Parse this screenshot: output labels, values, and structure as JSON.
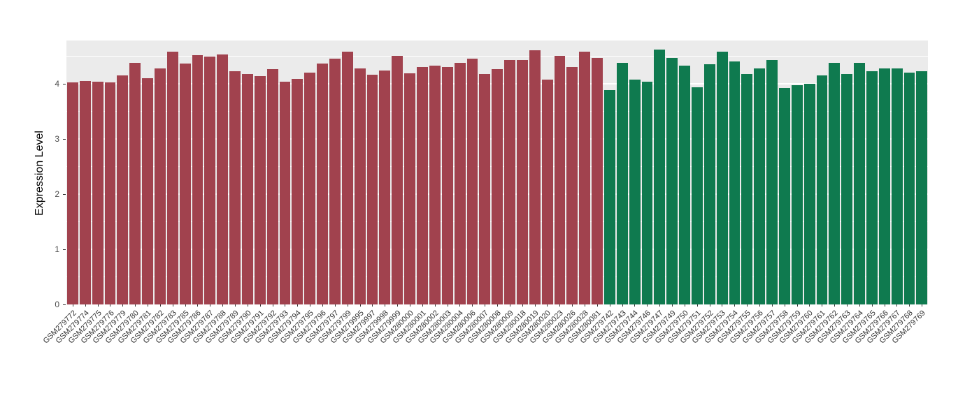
{
  "chart_data": {
    "type": "bar",
    "title": "",
    "xlabel": "",
    "ylabel": "Expression Level",
    "ylim": [
      0,
      4.78
    ],
    "yticks": [
      0,
      1,
      2,
      3,
      4
    ],
    "grid": true,
    "legend": "none",
    "panel_bg": "#EBEBEB",
    "group_colors": {
      "A": "#A1424E",
      "B": "#0F7A4F"
    },
    "bars": [
      {
        "label": "GSM279772",
        "value": 4.02,
        "group": "A"
      },
      {
        "label": "GSM279774",
        "value": 4.05,
        "group": "A"
      },
      {
        "label": "GSM279775",
        "value": 4.04,
        "group": "A"
      },
      {
        "label": "GSM279776",
        "value": 4.02,
        "group": "A"
      },
      {
        "label": "GSM279779",
        "value": 4.15,
        "group": "A"
      },
      {
        "label": "GSM279780",
        "value": 4.38,
        "group": "A"
      },
      {
        "label": "GSM279781",
        "value": 4.1,
        "group": "A"
      },
      {
        "label": "GSM279782",
        "value": 4.28,
        "group": "A"
      },
      {
        "label": "GSM279783",
        "value": 4.58,
        "group": "A"
      },
      {
        "label": "GSM279785",
        "value": 4.36,
        "group": "A"
      },
      {
        "label": "GSM279786",
        "value": 4.52,
        "group": "A"
      },
      {
        "label": "GSM279787",
        "value": 4.49,
        "group": "A"
      },
      {
        "label": "GSM279788",
        "value": 4.53,
        "group": "A"
      },
      {
        "label": "GSM279789",
        "value": 4.22,
        "group": "A"
      },
      {
        "label": "GSM279790",
        "value": 4.17,
        "group": "A"
      },
      {
        "label": "GSM279791",
        "value": 4.14,
        "group": "A"
      },
      {
        "label": "GSM279792",
        "value": 4.26,
        "group": "A"
      },
      {
        "label": "GSM279793",
        "value": 4.03,
        "group": "A"
      },
      {
        "label": "GSM279794",
        "value": 4.09,
        "group": "A"
      },
      {
        "label": "GSM279795",
        "value": 4.2,
        "group": "A"
      },
      {
        "label": "GSM279796",
        "value": 4.36,
        "group": "A"
      },
      {
        "label": "GSM279797",
        "value": 4.45,
        "group": "A"
      },
      {
        "label": "GSM279799",
        "value": 4.58,
        "group": "A"
      },
      {
        "label": "GSM279995",
        "value": 4.27,
        "group": "A"
      },
      {
        "label": "GSM279997",
        "value": 4.16,
        "group": "A"
      },
      {
        "label": "GSM279998",
        "value": 4.24,
        "group": "A"
      },
      {
        "label": "GSM279999",
        "value": 4.5,
        "group": "A"
      },
      {
        "label": "GSM280000",
        "value": 4.18,
        "group": "A"
      },
      {
        "label": "GSM280001",
        "value": 4.3,
        "group": "A"
      },
      {
        "label": "GSM280002",
        "value": 4.32,
        "group": "A"
      },
      {
        "label": "GSM280003",
        "value": 4.3,
        "group": "A"
      },
      {
        "label": "GSM280004",
        "value": 4.38,
        "group": "A"
      },
      {
        "label": "GSM280006",
        "value": 4.45,
        "group": "A"
      },
      {
        "label": "GSM280007",
        "value": 4.17,
        "group": "A"
      },
      {
        "label": "GSM280008",
        "value": 4.26,
        "group": "A"
      },
      {
        "label": "GSM280009",
        "value": 4.42,
        "group": "A"
      },
      {
        "label": "GSM280018",
        "value": 4.42,
        "group": "A"
      },
      {
        "label": "GSM280019",
        "value": 4.6,
        "group": "A"
      },
      {
        "label": "GSM280020",
        "value": 4.07,
        "group": "A"
      },
      {
        "label": "GSM280023",
        "value": 4.5,
        "group": "A"
      },
      {
        "label": "GSM280026",
        "value": 4.3,
        "group": "A"
      },
      {
        "label": "GSM280028",
        "value": 4.58,
        "group": "A"
      },
      {
        "label": "GSM280081",
        "value": 4.47,
        "group": "A"
      },
      {
        "label": "GSM279742",
        "value": 3.88,
        "group": "B"
      },
      {
        "label": "GSM279743",
        "value": 4.37,
        "group": "B"
      },
      {
        "label": "GSM279744",
        "value": 4.07,
        "group": "B"
      },
      {
        "label": "GSM279746",
        "value": 4.03,
        "group": "B"
      },
      {
        "label": "GSM279747",
        "value": 4.62,
        "group": "B"
      },
      {
        "label": "GSM279749",
        "value": 4.46,
        "group": "B"
      },
      {
        "label": "GSM279750",
        "value": 4.33,
        "group": "B"
      },
      {
        "label": "GSM279751",
        "value": 3.93,
        "group": "B"
      },
      {
        "label": "GSM279752",
        "value": 4.35,
        "group": "B"
      },
      {
        "label": "GSM279753",
        "value": 4.58,
        "group": "B"
      },
      {
        "label": "GSM279754",
        "value": 4.4,
        "group": "B"
      },
      {
        "label": "GSM279755",
        "value": 4.17,
        "group": "B"
      },
      {
        "label": "GSM279756",
        "value": 4.27,
        "group": "B"
      },
      {
        "label": "GSM279757",
        "value": 4.42,
        "group": "B"
      },
      {
        "label": "GSM279758",
        "value": 3.92,
        "group": "B"
      },
      {
        "label": "GSM279759",
        "value": 3.97,
        "group": "B"
      },
      {
        "label": "GSM279760",
        "value": 4.0,
        "group": "B"
      },
      {
        "label": "GSM279761",
        "value": 4.15,
        "group": "B"
      },
      {
        "label": "GSM279762",
        "value": 4.38,
        "group": "B"
      },
      {
        "label": "GSM279763",
        "value": 4.17,
        "group": "B"
      },
      {
        "label": "GSM279764",
        "value": 4.38,
        "group": "B"
      },
      {
        "label": "GSM279765",
        "value": 4.23,
        "group": "B"
      },
      {
        "label": "GSM279766",
        "value": 4.27,
        "group": "B"
      },
      {
        "label": "GSM279767",
        "value": 4.28,
        "group": "B"
      },
      {
        "label": "GSM279768",
        "value": 4.2,
        "group": "B"
      },
      {
        "label": "GSM279769",
        "value": 4.22,
        "group": "B"
      }
    ]
  }
}
